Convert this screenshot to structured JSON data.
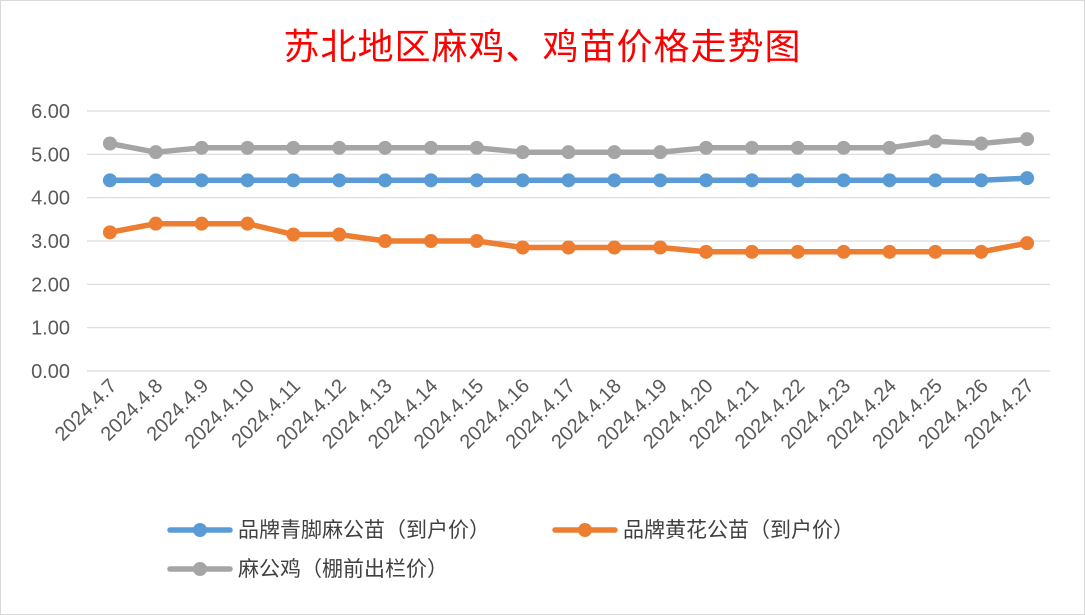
{
  "chart_data": {
    "type": "line",
    "title": "苏北地区麻鸡、鸡苗价格走势图",
    "xlabel": "",
    "ylabel": "",
    "ylim": [
      0,
      6
    ],
    "yticks": [
      "0.00",
      "1.00",
      "2.00",
      "3.00",
      "4.00",
      "5.00",
      "6.00"
    ],
    "grid": true,
    "legend_position": "bottom",
    "categories": [
      "2024.4.7",
      "2024.4.8",
      "2024.4.9",
      "2024.4.10",
      "2024.4.11",
      "2024.4.12",
      "2024.4.13",
      "2024.4.14",
      "2024.4.15",
      "2024.4.16",
      "2024.4.17",
      "2024.4.18",
      "2024.4.19",
      "2024.4.20",
      "2024.4.21",
      "2024.4.22",
      "2024.4.23",
      "2024.4.24",
      "2024.4.25",
      "2024.4.26",
      "2024.4.27"
    ],
    "series": [
      {
        "name": "品牌青脚麻公苗（到户价）",
        "color": "#5b9bd5",
        "values": [
          4.4,
          4.4,
          4.4,
          4.4,
          4.4,
          4.4,
          4.4,
          4.4,
          4.4,
          4.4,
          4.4,
          4.4,
          4.4,
          4.4,
          4.4,
          4.4,
          4.4,
          4.4,
          4.4,
          4.4,
          4.45
        ]
      },
      {
        "name": "品牌黄花公苗（到户价）",
        "color": "#ed7d31",
        "values": [
          3.2,
          3.4,
          3.4,
          3.4,
          3.15,
          3.15,
          3.0,
          3.0,
          3.0,
          2.85,
          2.85,
          2.85,
          2.85,
          2.75,
          2.75,
          2.75,
          2.75,
          2.75,
          2.75,
          2.75,
          2.95
        ]
      },
      {
        "name": "麻公鸡（棚前出栏价）",
        "color": "#a5a5a5",
        "values": [
          5.25,
          5.05,
          5.15,
          5.15,
          5.15,
          5.15,
          5.15,
          5.15,
          5.15,
          5.05,
          5.05,
          5.05,
          5.05,
          5.15,
          5.15,
          5.15,
          5.15,
          5.15,
          5.3,
          5.25,
          5.35
        ]
      }
    ]
  }
}
